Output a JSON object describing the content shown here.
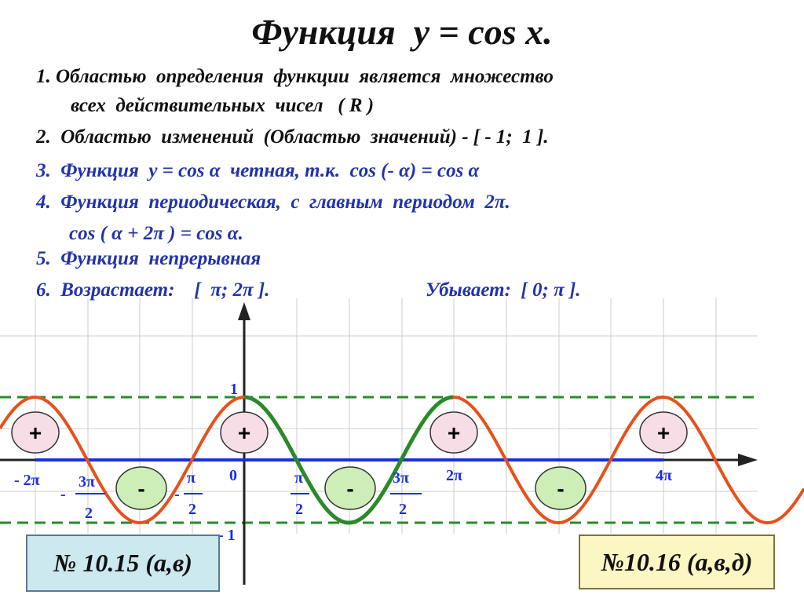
{
  "title": "Функция  y = cos x.",
  "properties": {
    "p1_line1": "1. Областью  определения  функции  является  множество",
    "p1_line2": "всех  действительных  чисел   ( R )",
    "p2": "2.  Областью  изменений  (Областью  значений) - [ - 1;  1 ].",
    "p3": "3.  Функция  у = cos α  четная, т.к.  cos (- α) = cos α",
    "p4_line1": "4.  Функция  периодическая,  с  главным  периодом  2π.",
    "p4_line2": "cos ( α + 2π ) = cos α.",
    "p5": "5.  Функция  непрерывная",
    "p6_increase": "6.  Возрастает:    [  π; 2π ].",
    "p6_decrease": "Убывает:  [ 0; π ]."
  },
  "graph": {
    "y_label_top": "1",
    "y_label_bottom": "- 1",
    "x_labels": {
      "minus_2pi": "- 2π",
      "minus_3pi_num": "3π",
      "minus_3pi_den": "2",
      "minus_3pi_sign": "-",
      "minus_pi2_num": "π",
      "minus_pi2_den": "2",
      "minus_pi2_sign": "-",
      "zero": "0",
      "pi2_num": "π",
      "pi2_den": "2",
      "three_pi2_num": "3π",
      "three_pi2_den": "2",
      "two_pi": "2π",
      "four_pi": "4π"
    },
    "plus_sign": "+",
    "minus_sign": "-",
    "colors": {
      "cosine_curve": "#e8501a",
      "highlight_curve": "#2a8a2a",
      "axis_segment": "#1a2ee0",
      "dashed_bounds": "#2a8a2a",
      "label_blue": "#1a2ee0",
      "plus_fill": "#f7dde6",
      "minus_fill": "#cdeeb7"
    }
  },
  "tasks": {
    "left": "№ 10.15 (а,в)",
    "right": "№10.16 (а,в,д)"
  }
}
